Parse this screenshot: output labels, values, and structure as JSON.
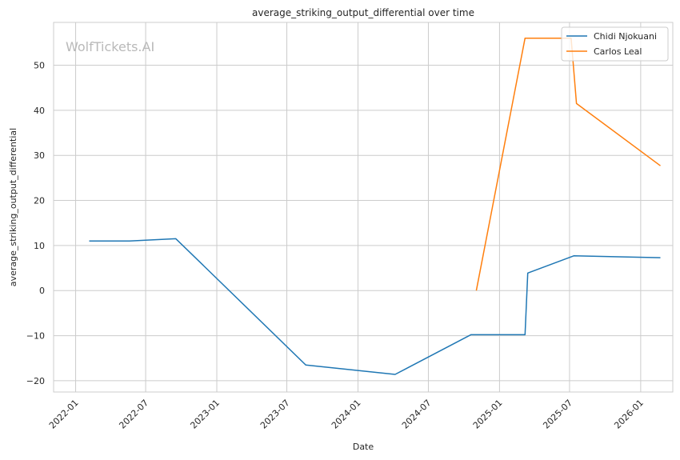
{
  "chart_data": {
    "type": "line",
    "title": "average_striking_output_differential over time",
    "xlabel": "Date",
    "ylabel": "average_striking_output_differential",
    "watermark": "WolfTickets.AI",
    "x_ticks": [
      "2022-01",
      "2022-07",
      "2023-01",
      "2023-07",
      "2024-01",
      "2024-07",
      "2025-01",
      "2025-07",
      "2026-01"
    ],
    "y_ticks": [
      -20,
      -10,
      0,
      10,
      20,
      30,
      40,
      50
    ],
    "xlim": [
      "2021-11-05",
      "2026-03-25"
    ],
    "ylim": [
      -22.5,
      59.5
    ],
    "grid": true,
    "legend_position": "top-right",
    "series": [
      {
        "name": "Chidi Njokuani",
        "color": "#1f77b4",
        "points": [
          {
            "x": "2022-02-05",
            "y": 11.0
          },
          {
            "x": "2022-05-20",
            "y": 11.0
          },
          {
            "x": "2022-09-17",
            "y": 11.5
          },
          {
            "x": "2023-08-19",
            "y": -16.5
          },
          {
            "x": "2024-04-06",
            "y": -18.6
          },
          {
            "x": "2024-10-19",
            "y": -9.8
          },
          {
            "x": "2025-03-08",
            "y": -9.8
          },
          {
            "x": "2025-03-15",
            "y": 3.9
          },
          {
            "x": "2025-07-12",
            "y": 7.7
          },
          {
            "x": "2026-02-21",
            "y": 7.3
          }
        ]
      },
      {
        "name": "Carlos Leal",
        "color": "#ff7f0e",
        "points": [
          {
            "x": "2024-11-02",
            "y": 0.0
          },
          {
            "x": "2025-03-08",
            "y": 56.0
          },
          {
            "x": "2025-07-05",
            "y": 56.0
          },
          {
            "x": "2025-07-19",
            "y": 41.5
          },
          {
            "x": "2026-02-21",
            "y": 27.7
          }
        ]
      }
    ]
  }
}
